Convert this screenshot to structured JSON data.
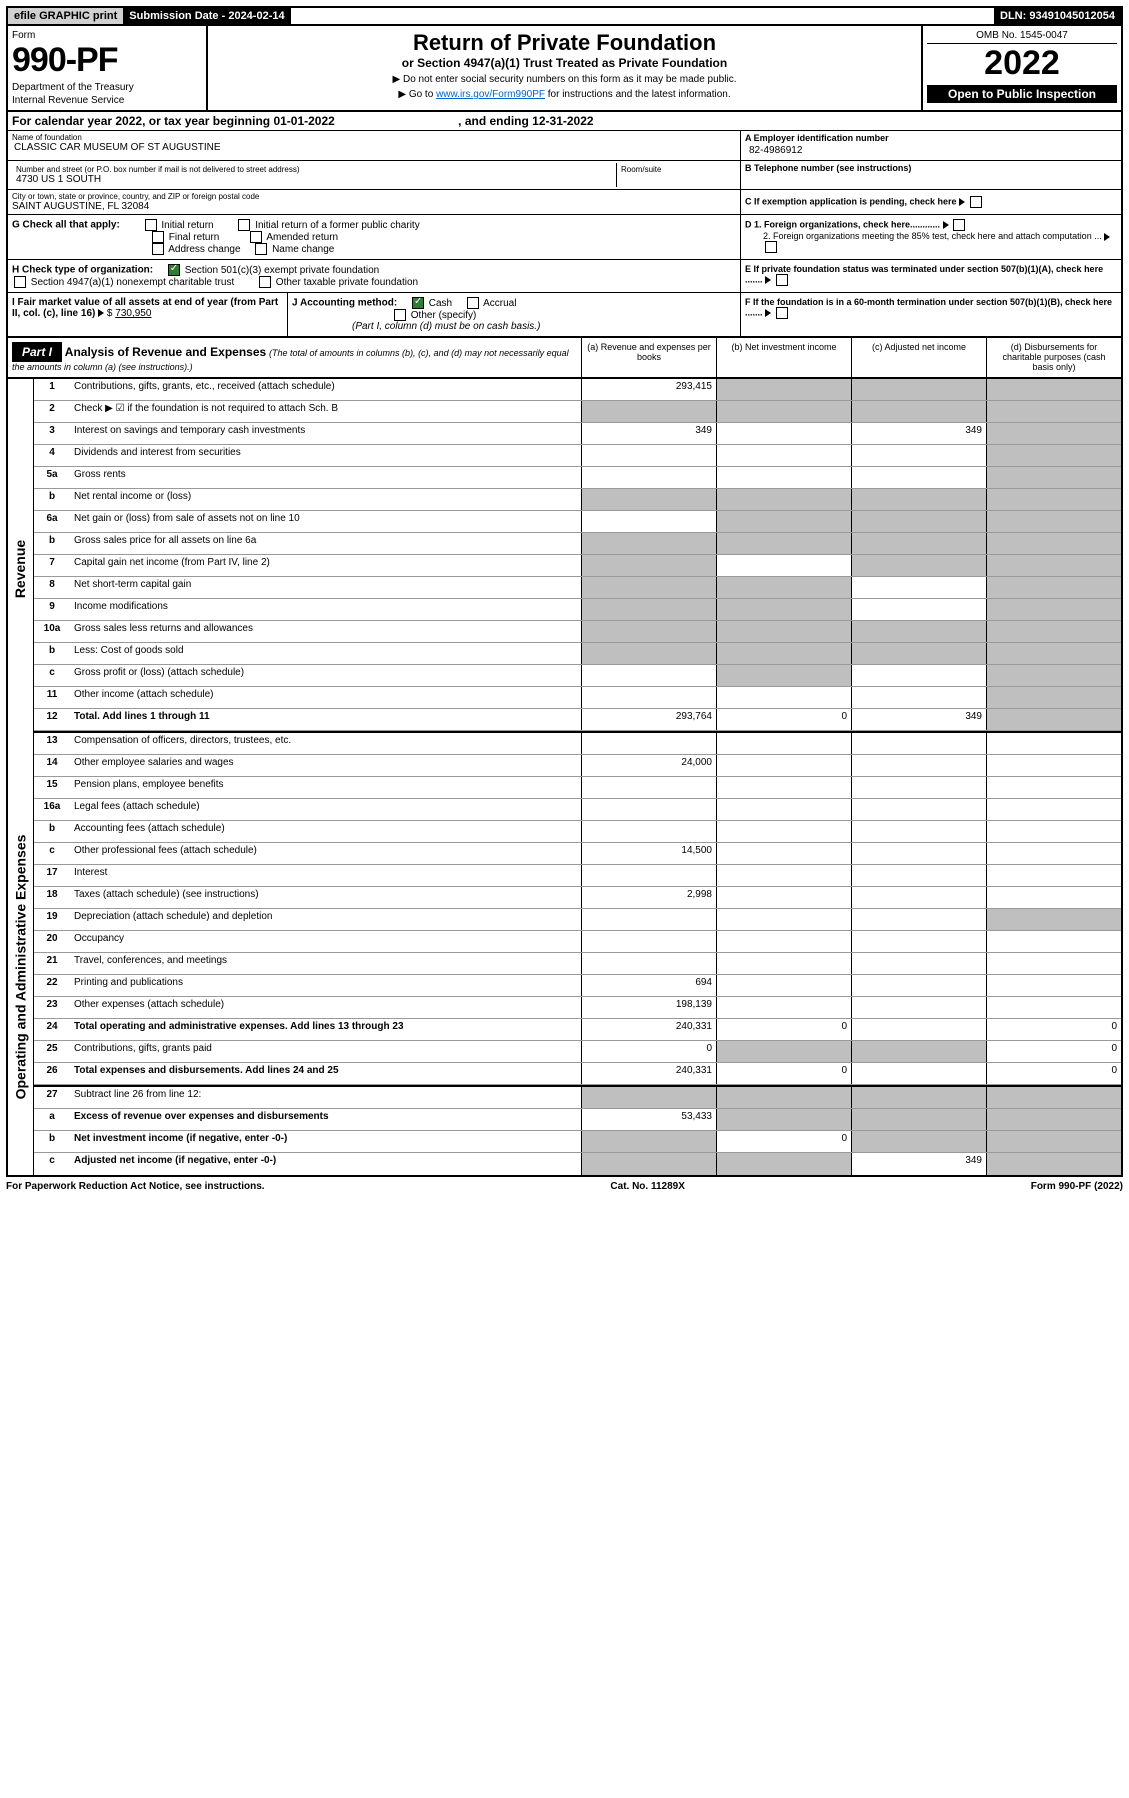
{
  "topbar": {
    "efile": "efile GRAPHIC print",
    "sub_label": "Submission Date - ",
    "sub_date": "2024-02-14",
    "dln_label": "DLN: ",
    "dln": "93491045012054"
  },
  "head": {
    "form_label": "Form",
    "form_no": "990-PF",
    "dept1": "Department of the Treasury",
    "dept2": "Internal Revenue Service",
    "title": "Return of Private Foundation",
    "sub1": "or Section 4947(a)(1) Trust Treated as Private Foundation",
    "bullet1": "▶ Do not enter social security numbers on this form as it may be made public.",
    "bullet2_pre": "▶ Go to ",
    "bullet2_link": "www.irs.gov/Form990PF",
    "bullet2_post": " for instructions and the latest information.",
    "omb": "OMB No. 1545-0047",
    "year": "2022",
    "inspect": "Open to Public Inspection"
  },
  "cal": {
    "text": "For calendar year 2022, or tax year beginning 01-01-2022",
    "end": ", and ending 12-31-2022"
  },
  "name": {
    "hdr": "Name of foundation",
    "val": "CLASSIC CAR MUSEUM OF ST AUGUSTINE",
    "a_hdr": "A Employer identification number",
    "ein": "82-4986912"
  },
  "addr": {
    "hdr": "Number and street (or P.O. box number if mail is not delivered to street address)",
    "street": "4730 US 1 SOUTH",
    "room_hdr": "Room/suite",
    "b_hdr": "B Telephone number (see instructions)"
  },
  "city": {
    "hdr": "City or town, state or province, country, and ZIP or foreign postal code",
    "val": "SAINT AUGUSTINE, FL  32084",
    "c_hdr": "C If exemption application is pending, check here"
  },
  "g": {
    "label": "G Check all that apply:",
    "initial": "Initial return",
    "initial_former": "Initial return of a former public charity",
    "final": "Final return",
    "amended": "Amended return",
    "addr_change": "Address change",
    "name_change": "Name change"
  },
  "d": {
    "d1": "D 1. Foreign organizations, check here............",
    "d2": "2. Foreign organizations meeting the 85% test, check here and attach computation ..."
  },
  "h": {
    "label": "H Check type of organization:",
    "opt1": "Section 501(c)(3) exempt private foundation",
    "opt2": "Section 4947(a)(1) nonexempt charitable trust",
    "opt3": "Other taxable private foundation"
  },
  "e": {
    "text": "E If private foundation status was terminated under section 507(b)(1)(A), check here ......."
  },
  "i": {
    "label": "I Fair market value of all assets at end of year (from Part II, col. (c), line 16)",
    "val": "730,950"
  },
  "j": {
    "label": "J Accounting method:",
    "cash": "Cash",
    "accrual": "Accrual",
    "other": "Other (specify)",
    "note": "(Part I, column (d) must be on cash basis.)"
  },
  "f": {
    "text": "F If the foundation is in a 60-month termination under section 507(b)(1)(B), check here ......."
  },
  "part1": {
    "label": "Part I",
    "title": "Analysis of Revenue and Expenses",
    "desc": "(The total of amounts in columns (b), (c), and (d) may not necessarily equal the amounts in column (a) (see instructions).)",
    "col_a": "(a) Revenue and expenses per books",
    "col_b": "(b) Net investment income",
    "col_c": "(c) Adjusted net income",
    "col_d": "(d) Disbursements for charitable purposes (cash basis only)"
  },
  "side": {
    "revenue": "Revenue",
    "expenses": "Operating and Administrative Expenses"
  },
  "lines": [
    {
      "no": "1",
      "desc": "Contributions, gifts, grants, etc., received (attach schedule)",
      "a": "293,415",
      "b": "",
      "c": "",
      "d": "",
      "grey_b": true,
      "grey_c": true,
      "grey_d": true
    },
    {
      "no": "2",
      "desc": "Check ▶ ☑ if the foundation is not required to attach Sch. B",
      "a": "",
      "b": "",
      "c": "",
      "d": "",
      "grey_a": true,
      "grey_b": true,
      "grey_c": true,
      "grey_d": true
    },
    {
      "no": "3",
      "desc": "Interest on savings and temporary cash investments",
      "a": "349",
      "b": "",
      "c": "349",
      "d": "",
      "grey_d": true
    },
    {
      "no": "4",
      "desc": "Dividends and interest from securities",
      "a": "",
      "b": "",
      "c": "",
      "d": "",
      "grey_d": true
    },
    {
      "no": "5a",
      "desc": "Gross rents",
      "a": "",
      "b": "",
      "c": "",
      "d": "",
      "grey_d": true
    },
    {
      "no": "b",
      "desc": "Net rental income or (loss)",
      "a": "",
      "b": "",
      "c": "",
      "d": "",
      "grey_a": true,
      "grey_b": true,
      "grey_c": true,
      "grey_d": true
    },
    {
      "no": "6a",
      "desc": "Net gain or (loss) from sale of assets not on line 10",
      "a": "",
      "b": "",
      "c": "",
      "d": "",
      "grey_b": true,
      "grey_c": true,
      "grey_d": true
    },
    {
      "no": "b",
      "desc": "Gross sales price for all assets on line 6a",
      "a": "",
      "b": "",
      "c": "",
      "d": "",
      "grey_a": true,
      "grey_b": true,
      "grey_c": true,
      "grey_d": true
    },
    {
      "no": "7",
      "desc": "Capital gain net income (from Part IV, line 2)",
      "a": "",
      "b": "",
      "c": "",
      "d": "",
      "grey_a": true,
      "grey_c": true,
      "grey_d": true
    },
    {
      "no": "8",
      "desc": "Net short-term capital gain",
      "a": "",
      "b": "",
      "c": "",
      "d": "",
      "grey_a": true,
      "grey_b": true,
      "grey_d": true
    },
    {
      "no": "9",
      "desc": "Income modifications",
      "a": "",
      "b": "",
      "c": "",
      "d": "",
      "grey_a": true,
      "grey_b": true,
      "grey_d": true
    },
    {
      "no": "10a",
      "desc": "Gross sales less returns and allowances",
      "a": "",
      "b": "",
      "c": "",
      "d": "",
      "grey_a": true,
      "grey_b": true,
      "grey_c": true,
      "grey_d": true
    },
    {
      "no": "b",
      "desc": "Less: Cost of goods sold",
      "a": "",
      "b": "",
      "c": "",
      "d": "",
      "grey_a": true,
      "grey_b": true,
      "grey_c": true,
      "grey_d": true
    },
    {
      "no": "c",
      "desc": "Gross profit or (loss) (attach schedule)",
      "a": "",
      "b": "",
      "c": "",
      "d": "",
      "grey_b": true,
      "grey_d": true
    },
    {
      "no": "11",
      "desc": "Other income (attach schedule)",
      "a": "",
      "b": "",
      "c": "",
      "d": "",
      "grey_d": true
    },
    {
      "no": "12",
      "desc": "Total. Add lines 1 through 11",
      "a": "293,764",
      "b": "0",
      "c": "349",
      "d": "",
      "bold": true,
      "grey_d": true
    }
  ],
  "exp_lines": [
    {
      "no": "13",
      "desc": "Compensation of officers, directors, trustees, etc.",
      "a": "",
      "b": "",
      "c": "",
      "d": ""
    },
    {
      "no": "14",
      "desc": "Other employee salaries and wages",
      "a": "24,000",
      "b": "",
      "c": "",
      "d": ""
    },
    {
      "no": "15",
      "desc": "Pension plans, employee benefits",
      "a": "",
      "b": "",
      "c": "",
      "d": ""
    },
    {
      "no": "16a",
      "desc": "Legal fees (attach schedule)",
      "a": "",
      "b": "",
      "c": "",
      "d": ""
    },
    {
      "no": "b",
      "desc": "Accounting fees (attach schedule)",
      "a": "",
      "b": "",
      "c": "",
      "d": ""
    },
    {
      "no": "c",
      "desc": "Other professional fees (attach schedule)",
      "a": "14,500",
      "b": "",
      "c": "",
      "d": ""
    },
    {
      "no": "17",
      "desc": "Interest",
      "a": "",
      "b": "",
      "c": "",
      "d": ""
    },
    {
      "no": "18",
      "desc": "Taxes (attach schedule) (see instructions)",
      "a": "2,998",
      "b": "",
      "c": "",
      "d": ""
    },
    {
      "no": "19",
      "desc": "Depreciation (attach schedule) and depletion",
      "a": "",
      "b": "",
      "c": "",
      "d": "",
      "grey_d": true
    },
    {
      "no": "20",
      "desc": "Occupancy",
      "a": "",
      "b": "",
      "c": "",
      "d": ""
    },
    {
      "no": "21",
      "desc": "Travel, conferences, and meetings",
      "a": "",
      "b": "",
      "c": "",
      "d": ""
    },
    {
      "no": "22",
      "desc": "Printing and publications",
      "a": "694",
      "b": "",
      "c": "",
      "d": ""
    },
    {
      "no": "23",
      "desc": "Other expenses (attach schedule)",
      "a": "198,139",
      "b": "",
      "c": "",
      "d": ""
    },
    {
      "no": "24",
      "desc": "Total operating and administrative expenses. Add lines 13 through 23",
      "a": "240,331",
      "b": "0",
      "c": "",
      "d": "0",
      "bold": true
    },
    {
      "no": "25",
      "desc": "Contributions, gifts, grants paid",
      "a": "0",
      "b": "",
      "c": "",
      "d": "0",
      "grey_b": true,
      "grey_c": true
    },
    {
      "no": "26",
      "desc": "Total expenses and disbursements. Add lines 24 and 25",
      "a": "240,331",
      "b": "0",
      "c": "",
      "d": "0",
      "bold": true
    }
  ],
  "net_lines": [
    {
      "no": "27",
      "desc": "Subtract line 26 from line 12:",
      "a": "",
      "b": "",
      "c": "",
      "d": "",
      "grey_a": true,
      "grey_b": true,
      "grey_c": true,
      "grey_d": true
    },
    {
      "no": "a",
      "desc": "Excess of revenue over expenses and disbursements",
      "a": "53,433",
      "b": "",
      "c": "",
      "d": "",
      "bold": true,
      "grey_b": true,
      "grey_c": true,
      "grey_d": true
    },
    {
      "no": "b",
      "desc": "Net investment income (if negative, enter -0-)",
      "a": "",
      "b": "0",
      "c": "",
      "d": "",
      "bold": true,
      "grey_a": true,
      "grey_c": true,
      "grey_d": true
    },
    {
      "no": "c",
      "desc": "Adjusted net income (if negative, enter -0-)",
      "a": "",
      "b": "",
      "c": "349",
      "d": "",
      "bold": true,
      "grey_a": true,
      "grey_b": true,
      "grey_d": true
    }
  ],
  "footer": {
    "left": "For Paperwork Reduction Act Notice, see instructions.",
    "center": "Cat. No. 11289X",
    "right": "Form 990-PF (2022)"
  },
  "colors": {
    "link": "#0066cc",
    "grey_cell": "#bfbfbf",
    "topbar_grey": "#d0d0d0",
    "check_green": "#2e7d32"
  }
}
